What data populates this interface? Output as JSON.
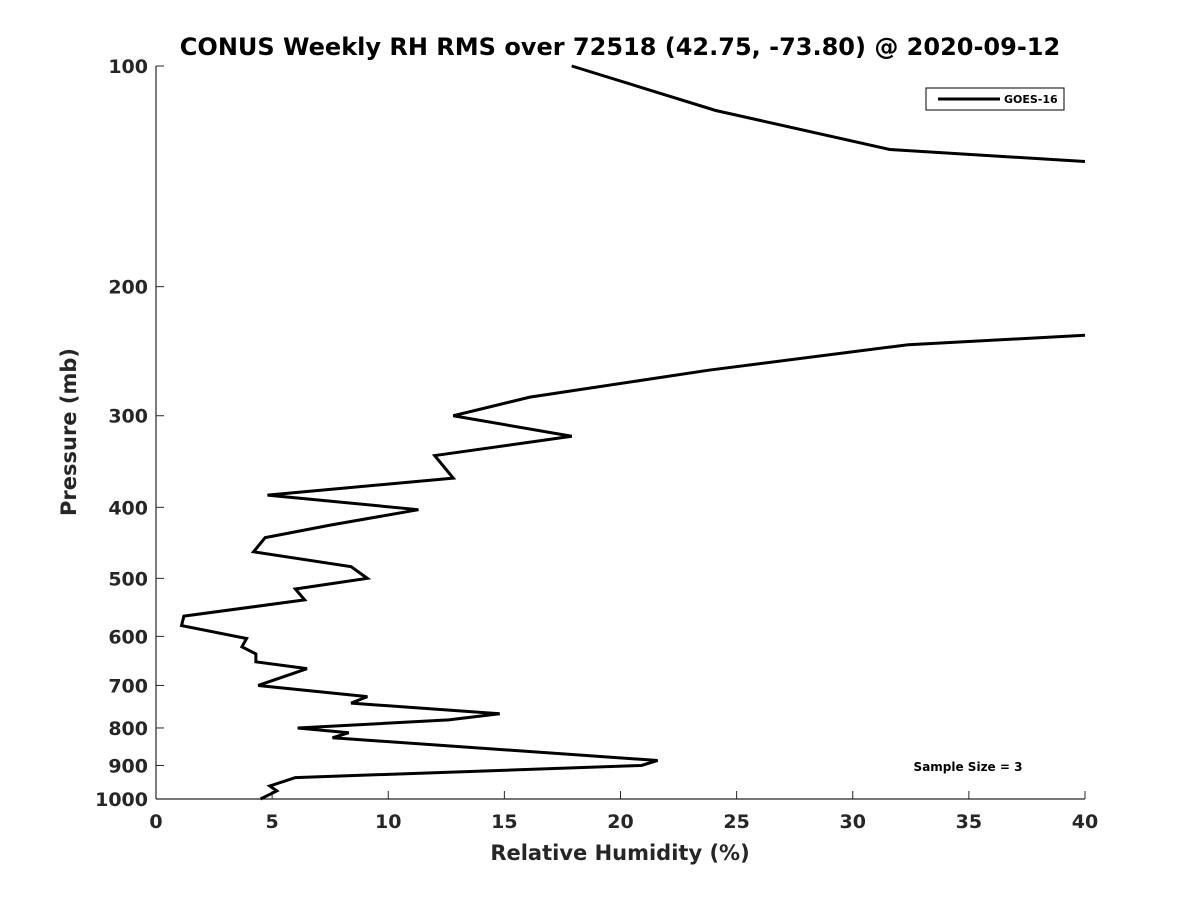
{
  "chart_data": {
    "type": "line",
    "title": "CONUS Weekly RH RMS over 72518 (42.75, -73.80) @ 2020-09-12",
    "xlabel": "Relative Humidity (%)",
    "ylabel": "Pressure (mb)",
    "xlim": [
      0,
      40
    ],
    "ylim": [
      100,
      1000
    ],
    "y_scale": "log",
    "y_reversed": true,
    "x_ticks": [
      0,
      5,
      10,
      15,
      20,
      25,
      30,
      35,
      40
    ],
    "y_ticks": [
      100,
      200,
      300,
      400,
      500,
      600,
      700,
      800,
      900,
      1000
    ],
    "x_tick_labels": [
      "0",
      "5",
      "10",
      "15",
      "20",
      "25",
      "30",
      "35",
      "40"
    ],
    "y_tick_labels": [
      "100",
      "200",
      "300",
      "400",
      "500",
      "600",
      "700",
      "800",
      "900",
      "1000"
    ],
    "grid": false,
    "legend_position": "top-right",
    "annotation": "Sample Size = 3",
    "series": [
      {
        "name": "GOES-16",
        "color": "#000000",
        "segments": [
          {
            "x": [
              17.9,
              24.1,
              31.6,
              40.0
            ],
            "y": [
              100,
              115,
              130,
              135
            ]
          },
          {
            "x": [
              40.0,
              32.4,
              23.8,
              16.1,
              12.8,
              17.9,
              12.0,
              12.8,
              4.8,
              11.3,
              7.5,
              4.7,
              4.2,
              8.4,
              9.1,
              6.0,
              6.4,
              1.2,
              1.1,
              3.9,
              3.7,
              4.3,
              4.3,
              6.5,
              4.4,
              9.1,
              8.4,
              14.8,
              12.6,
              6.1,
              8.3,
              7.6,
              21.6,
              20.9,
              6.0,
              4.9,
              5.2,
              4.5
            ],
            "y": [
              233,
              240,
              260,
              283,
              300,
              320,
              340,
              365,
              385,
              403,
              423,
              440,
              460,
              482,
              500,
              517,
              535,
              563,
              580,
              604,
              620,
              634,
              650,
              664,
              700,
              725,
              740,
              765,
              780,
              800,
              812,
              825,
              886,
              900,
              935,
              960,
              975,
              1000
            ]
          }
        ]
      }
    ]
  }
}
